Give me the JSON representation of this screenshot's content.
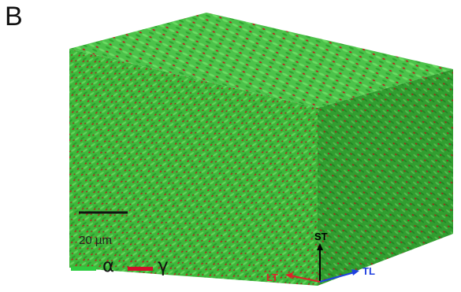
{
  "panel_label": "B",
  "scale_bar": {
    "label": "20 µm"
  },
  "legend": [
    {
      "label": "α",
      "color": "#2ecc40"
    },
    {
      "label": "γ",
      "color": "#d0102a"
    }
  ],
  "axes": {
    "st": {
      "label": "ST",
      "color": "#000000"
    },
    "lt": {
      "label": "LT",
      "color": "#e0202a"
    },
    "tl": {
      "label": "TL",
      "color": "#2040e0"
    }
  },
  "colors": {
    "alpha_phase": "#3fbf3a",
    "gamma_phase": "#c8141c"
  }
}
